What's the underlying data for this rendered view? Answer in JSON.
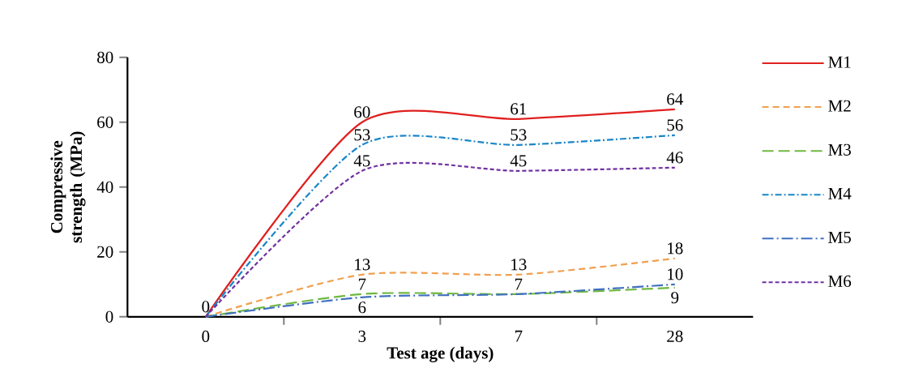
{
  "chart_data": {
    "type": "line",
    "xlabel": "Test age (days)",
    "ylabel": "Compressive strength (MPa)",
    "categories": [
      "0",
      "3",
      "7",
      "28"
    ],
    "series": [
      {
        "name": "M1",
        "color": "#e0201e",
        "line_style": "solid",
        "values": [
          0,
          60,
          61,
          64
        ],
        "value_labels": [
          "0",
          "60",
          "61",
          "64"
        ]
      },
      {
        "name": "M2",
        "color": "#f0a050",
        "line_style": "dashed",
        "values": [
          0,
          13,
          13,
          18
        ],
        "value_labels": [
          null,
          "13",
          "13",
          "18"
        ]
      },
      {
        "name": "M3",
        "color": "#70b840",
        "line_style": "dashed",
        "values": [
          0,
          7,
          7,
          9
        ],
        "value_labels": [
          null,
          "7",
          null,
          "9"
        ]
      },
      {
        "name": "M4",
        "color": "#1a86c8",
        "line_style": "dashed",
        "values": [
          0,
          53,
          53,
          56
        ],
        "value_labels": [
          null,
          "53",
          "53",
          "56"
        ]
      },
      {
        "name": "M5",
        "color": "#4070c0",
        "line_style": "dashed",
        "values": [
          0,
          6,
          7,
          10
        ],
        "value_labels": [
          null,
          "6",
          "7",
          "10"
        ]
      },
      {
        "name": "M6",
        "color": "#7030a0",
        "line_style": "dashed",
        "values": [
          0,
          45,
          45,
          46
        ],
        "value_labels": [
          null,
          "45",
          "45",
          "46"
        ]
      }
    ],
    "ylim": [
      0,
      80
    ],
    "yticks": [
      0,
      20,
      40,
      60,
      80
    ],
    "legend": "right",
    "grid": false,
    "marker": "none"
  }
}
